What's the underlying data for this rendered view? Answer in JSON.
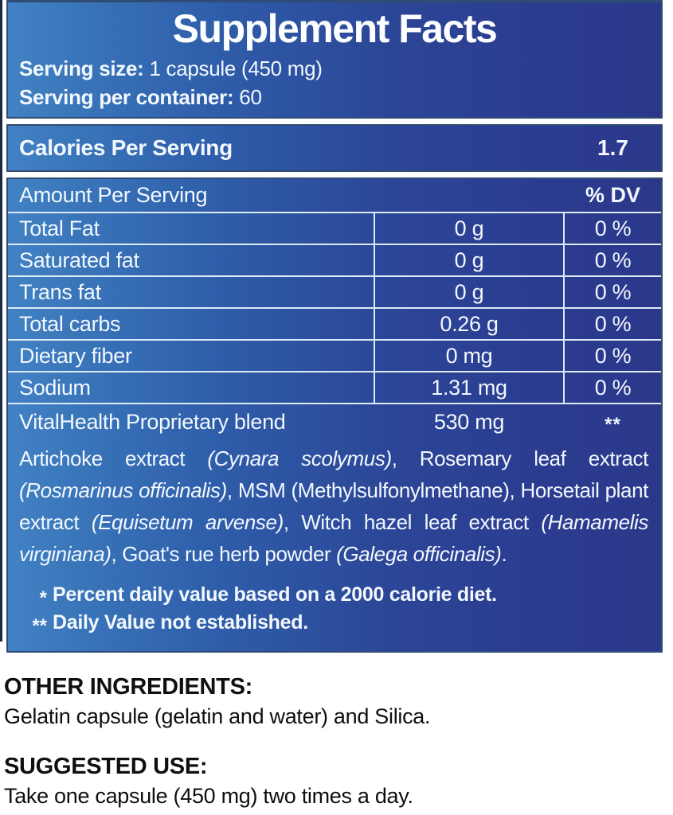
{
  "label": {
    "title": "Supplement Facts",
    "serving_size_label": "Serving size:",
    "serving_size_value": "1 capsule (450 mg)",
    "servings_per_container_label": "Serving per container:",
    "servings_per_container_value": "60",
    "calories_label": "Calories Per Serving",
    "calories_value": "1.7",
    "table": {
      "amount_header": "Amount Per Serving",
      "dv_header": "% DV",
      "rows": [
        {
          "name": "Total Fat",
          "amount": "0 g",
          "dv": "0 %"
        },
        {
          "name": "Saturated fat",
          "amount": "0 g",
          "dv": "0 %"
        },
        {
          "name": "Trans fat",
          "amount": "0 g",
          "dv": "0 %"
        },
        {
          "name": "Total carbs",
          "amount": "0.26 g",
          "dv": "0 %"
        },
        {
          "name": "Dietary fiber",
          "amount": "0 mg",
          "dv": "0 %"
        },
        {
          "name": "Sodium",
          "amount": "1.31 mg",
          "dv": "0 %"
        }
      ]
    },
    "blend": {
      "name": "VitalHealth Proprietary blend",
      "amount": "530 mg",
      "dv": "**",
      "description_segments": [
        {
          "text": "Artichoke extract ",
          "italic": false
        },
        {
          "text": "(Cynara scolymus)",
          "italic": true
        },
        {
          "text": ", Rosemary leaf extract ",
          "italic": false
        },
        {
          "text": "(Rosmarinus officinalis)",
          "italic": true
        },
        {
          "text": ", MSM (Methylsulfonylmethane), Horsetail plant extract ",
          "italic": false
        },
        {
          "text": "(Equisetum arvense)",
          "italic": true
        },
        {
          "text": ", Witch hazel leaf  extract ",
          "italic": false
        },
        {
          "text": "(Hamamelis virginiana)",
          "italic": true
        },
        {
          "text": ", Goat's rue herb powder ",
          "italic": false
        },
        {
          "text": "(Galega  officinalis)",
          "italic": true
        },
        {
          "text": ".",
          "italic": false
        }
      ]
    },
    "footnotes": [
      {
        "marker": "*",
        "text": "Percent daily value based on a 2000 calorie diet."
      },
      {
        "marker": "**",
        "text": "Daily Value not established."
      }
    ]
  },
  "other_ingredients": {
    "heading": "OTHER INGREDIENTS:",
    "text": "Gelatin capsule (gelatin and water) and Silica."
  },
  "suggested_use": {
    "heading": "SUGGESTED USE:",
    "text": "Take one capsule (450 mg) two times a day."
  },
  "colors": {
    "gradient_left": "#4282c4",
    "gradient_right": "#2b388a",
    "panel_border": "#2f4d74",
    "divider": "#dcebf7",
    "light_text": "#f2f8fe",
    "dark_text": "#0f0f0f",
    "background": "#ffffff"
  }
}
